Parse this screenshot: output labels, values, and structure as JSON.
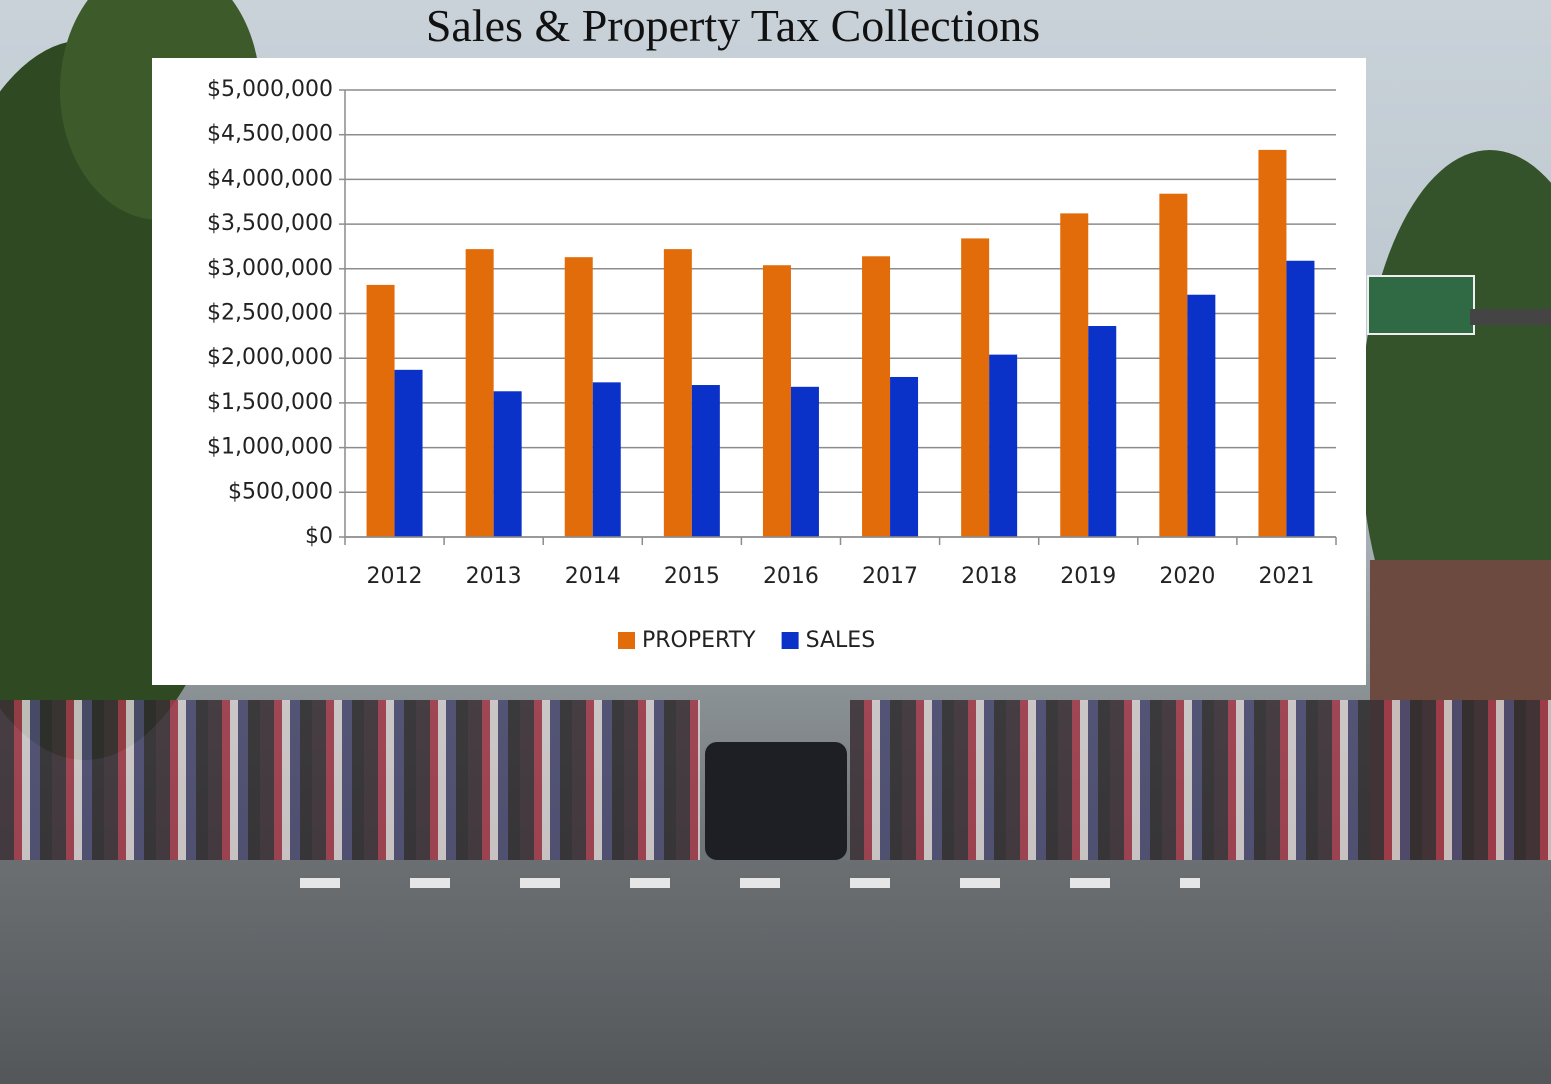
{
  "chart_data": {
    "type": "bar",
    "title": "Sales & Property Tax Collections",
    "categories": [
      "2012",
      "2013",
      "2014",
      "2015",
      "2016",
      "2017",
      "2018",
      "2019",
      "2020",
      "2021"
    ],
    "series": [
      {
        "name": "PROPERTY",
        "color": "#e36c0a",
        "values": [
          2820000,
          3220000,
          3130000,
          3220000,
          3040000,
          3140000,
          3340000,
          3620000,
          3840000,
          4330000
        ]
      },
      {
        "name": "SALES",
        "color": "#0a32c8",
        "values": [
          1870000,
          1630000,
          1730000,
          1700000,
          1680000,
          1790000,
          2040000,
          2360000,
          2710000,
          3090000
        ]
      }
    ],
    "ylim": [
      0,
      5000000
    ],
    "yticks": [
      {
        "value": 0,
        "label": "$0"
      },
      {
        "value": 500000,
        "label": "$500,000"
      },
      {
        "value": 1000000,
        "label": "$1,000,000"
      },
      {
        "value": 1500000,
        "label": "$1,500,000"
      },
      {
        "value": 2000000,
        "label": "$2,000,000"
      },
      {
        "value": 2500000,
        "label": "$2,500,000"
      },
      {
        "value": 3000000,
        "label": "$3,000,000"
      },
      {
        "value": 3500000,
        "label": "$3,500,000"
      },
      {
        "value": 4000000,
        "label": "$4,000,000"
      },
      {
        "value": 4500000,
        "label": "$4,500,000"
      },
      {
        "value": 5000000,
        "label": "$5,000,000"
      }
    ],
    "grid": true,
    "legend": "bottom"
  }
}
